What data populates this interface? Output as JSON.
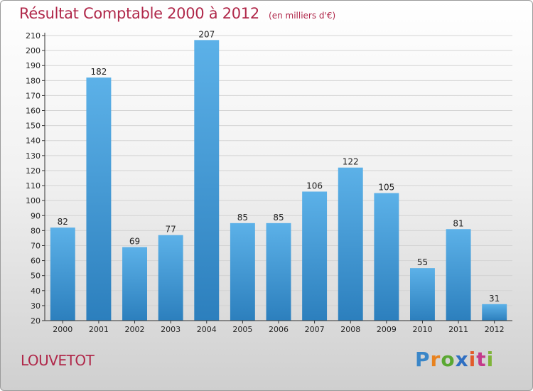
{
  "header": {
    "title": "Résultat Comptable 2000 à 2012",
    "subtitle": "(en milliers d'€)"
  },
  "footer": {
    "location": "LOUVETOT",
    "brand": {
      "text": "Proxiti",
      "letters": [
        "P",
        "r",
        "o",
        "x",
        "i",
        "t",
        "i"
      ],
      "colors": [
        "#3a86c8",
        "#e8821e",
        "#5aa832",
        "#2f6fc2",
        "#e25b2a",
        "#c43a8a",
        "#7fb43a"
      ]
    }
  },
  "colors": {
    "title": "#b0284a",
    "bar_top": "#5cb1e8",
    "bar_bottom": "#2c7fbd",
    "grid": "#d3d3d3"
  },
  "chart_data": {
    "type": "bar",
    "title": "Résultat Comptable 2000 à 2012",
    "subtitle": "(en milliers d'€)",
    "xlabel": "",
    "ylabel": "",
    "categories": [
      "2000",
      "2001",
      "2002",
      "2003",
      "2004",
      "2005",
      "2006",
      "2007",
      "2008",
      "2009",
      "2010",
      "2011",
      "2012"
    ],
    "values": [
      82,
      182,
      69,
      77,
      207,
      85,
      85,
      106,
      122,
      105,
      55,
      81,
      31
    ],
    "ylim": [
      20,
      210
    ],
    "yticks": [
      20,
      30,
      40,
      50,
      60,
      70,
      80,
      90,
      100,
      110,
      120,
      130,
      140,
      150,
      160,
      170,
      180,
      190,
      200,
      210
    ],
    "grid": true,
    "legend": "none"
  }
}
